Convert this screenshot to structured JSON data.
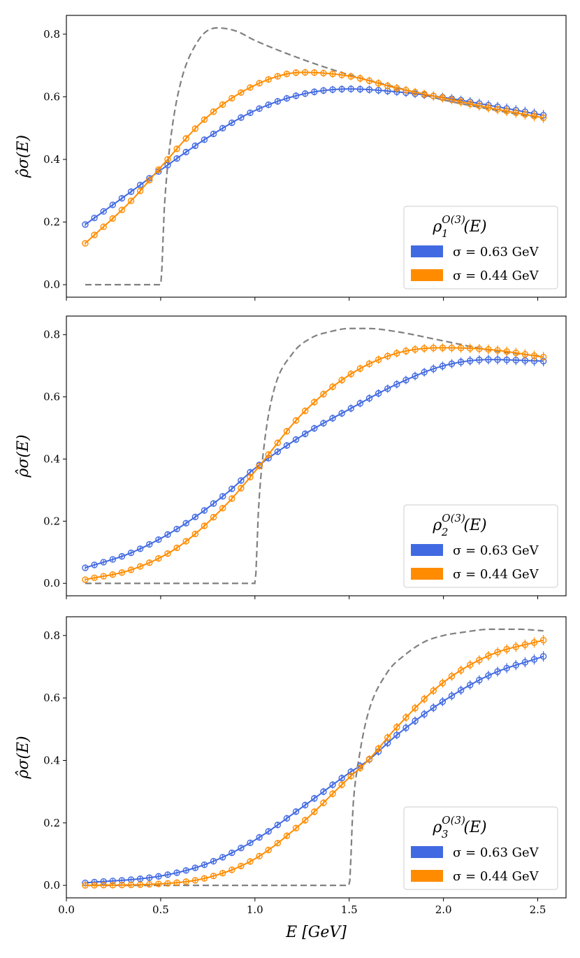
{
  "chart_data": [
    {
      "type": "line",
      "ylabel": "ρ̂σ(E)",
      "legend_title": {
        "base": "ρ",
        "sup": "O(3)",
        "sub": "1",
        "tail": "(E)"
      },
      "legend_position": "lower-right",
      "xlim": [
        0,
        2.65
      ],
      "ylim": [
        -0.04,
        0.86
      ],
      "xticks": [
        "0.0",
        "0.5",
        "1.0",
        "1.5",
        "2.0",
        "2.5"
      ],
      "yticks": [
        "0.0",
        "0.2",
        "0.4",
        "0.6",
        "0.8"
      ],
      "x": [
        0.1,
        0.35,
        0.5,
        0.75,
        1.0,
        1.25,
        1.5,
        1.75,
        2.0,
        2.25,
        2.53
      ],
      "series": [
        {
          "name": "σ = 0.63 GeV",
          "color": "#4169e1",
          "values": [
            0.192,
            0.3,
            0.366,
            0.47,
            0.556,
            0.608,
            0.625,
            0.616,
            0.598,
            0.572,
            0.541
          ]
        },
        {
          "name": "σ = 0.44 GeV",
          "color": "#ff8c00",
          "values": [
            0.132,
            0.272,
            0.375,
            0.537,
            0.637,
            0.678,
            0.666,
            0.628,
            0.596,
            0.564,
            0.533
          ]
        }
      ],
      "target": {
        "color": "#808080",
        "x": [
          0.1,
          0.5,
          0.52,
          0.55,
          0.6,
          0.7,
          0.8,
          0.9,
          1.0,
          1.25,
          1.5,
          1.75,
          2.0,
          2.25,
          2.53
        ],
        "values": [
          0.0,
          0.0,
          0.25,
          0.45,
          0.63,
          0.78,
          0.82,
          0.81,
          0.78,
          0.72,
          0.67,
          0.63,
          0.59,
          0.56,
          0.53
        ]
      }
    },
    {
      "type": "line",
      "ylabel": "ρ̂σ(E)",
      "legend_title": {
        "base": "ρ",
        "sup": "O(3)",
        "sub": "2",
        "tail": "(E)"
      },
      "legend_position": "lower-right",
      "xlim": [
        0,
        2.65
      ],
      "ylim": [
        -0.04,
        0.86
      ],
      "xticks": [
        "0.0",
        "0.5",
        "1.0",
        "1.5",
        "2.0",
        "2.5"
      ],
      "yticks": [
        "0.0",
        "0.2",
        "0.4",
        "0.6",
        "0.8"
      ],
      "x": [
        0.1,
        0.35,
        0.6,
        0.85,
        1.0,
        1.25,
        1.5,
        1.75,
        2.0,
        2.25,
        2.53
      ],
      "series": [
        {
          "name": "σ = 0.63 GeV",
          "color": "#4169e1",
          "values": [
            0.05,
            0.1,
            0.18,
            0.29,
            0.37,
            0.475,
            0.56,
            0.64,
            0.7,
            0.72,
            0.715
          ]
        },
        {
          "name": "σ = 0.44 GeV",
          "color": "#ff8c00",
          "values": [
            0.012,
            0.045,
            0.12,
            0.255,
            0.36,
            0.545,
            0.67,
            0.74,
            0.758,
            0.752,
            0.728
          ]
        }
      ],
      "target": {
        "color": "#808080",
        "x": [
          0.1,
          1.0,
          1.02,
          1.05,
          1.1,
          1.2,
          1.3,
          1.4,
          1.5,
          1.6,
          1.75,
          2.0,
          2.25,
          2.53
        ],
        "values": [
          0.0,
          0.0,
          0.25,
          0.45,
          0.62,
          0.74,
          0.79,
          0.81,
          0.82,
          0.82,
          0.81,
          0.78,
          0.75,
          0.73
        ]
      }
    },
    {
      "type": "line",
      "ylabel": "ρ̂σ(E)",
      "xlabel": "E [GeV]",
      "legend_title": {
        "base": "ρ",
        "sup": "O(3)",
        "sub": "3",
        "tail": "(E)"
      },
      "legend_position": "lower-right",
      "xlim": [
        0,
        2.65
      ],
      "ylim": [
        -0.04,
        0.86
      ],
      "xticks": [
        "0.0",
        "0.5",
        "1.0",
        "1.5",
        "2.0",
        "2.5"
      ],
      "yticks": [
        "0.0",
        "0.2",
        "0.4",
        "0.6",
        "0.8"
      ],
      "x": [
        0.1,
        0.5,
        0.75,
        1.0,
        1.25,
        1.5,
        1.6,
        1.75,
        2.0,
        2.25,
        2.53
      ],
      "series": [
        {
          "name": "σ = 0.63 GeV",
          "color": "#4169e1",
          "values": [
            0.008,
            0.03,
            0.07,
            0.145,
            0.25,
            0.36,
            0.4,
            0.48,
            0.59,
            0.675,
            0.733
          ]
        },
        {
          "name": "σ = 0.44 GeV",
          "color": "#ff8c00",
          "values": [
            0.0,
            0.005,
            0.025,
            0.085,
            0.2,
            0.345,
            0.4,
            0.505,
            0.65,
            0.738,
            0.785
          ]
        }
      ],
      "target": {
        "color": "#808080",
        "x": [
          0.1,
          1.5,
          1.52,
          1.55,
          1.6,
          1.7,
          1.8,
          1.9,
          2.0,
          2.1,
          2.25,
          2.4,
          2.53
        ],
        "values": [
          0.0,
          0.0,
          0.25,
          0.4,
          0.55,
          0.68,
          0.74,
          0.78,
          0.8,
          0.81,
          0.82,
          0.82,
          0.815
        ]
      }
    }
  ]
}
